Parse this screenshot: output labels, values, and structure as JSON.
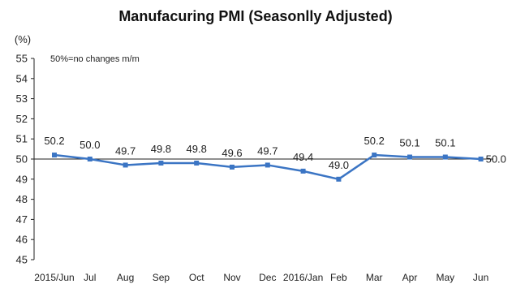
{
  "chart_data": {
    "type": "line",
    "title": "Manufacuring PMI (Seasonlly Adjusted)",
    "ylabel": "(%)",
    "annotation": "50%=no changes m/m",
    "categories": [
      "2015/Jun",
      "Jul",
      "Aug",
      "Sep",
      "Oct",
      "Nov",
      "Dec",
      "2016/Jan",
      "Feb",
      "Mar",
      "Apr",
      "May",
      "Jun"
    ],
    "values": [
      50.2,
      50.0,
      49.7,
      49.8,
      49.8,
      49.6,
      49.7,
      49.4,
      49.0,
      50.2,
      50.1,
      50.1,
      50.0
    ],
    "value_labels": [
      "50.2",
      "50.0",
      "49.7",
      "49.8",
      "49.8",
      "49.6",
      "49.7",
      "49.4",
      "49.0",
      "50.2",
      "50.1",
      "50.1",
      "50.0"
    ],
    "ylim": [
      45,
      55
    ],
    "yticks": [
      "45",
      "46",
      "47",
      "48",
      "49",
      "50",
      "51",
      "52",
      "53",
      "54",
      "55"
    ],
    "reference_line": 50,
    "grid": false,
    "legend": "none",
    "colors": {
      "series": "#3b75c4",
      "reference": "#222222",
      "axis": "#222222"
    }
  }
}
